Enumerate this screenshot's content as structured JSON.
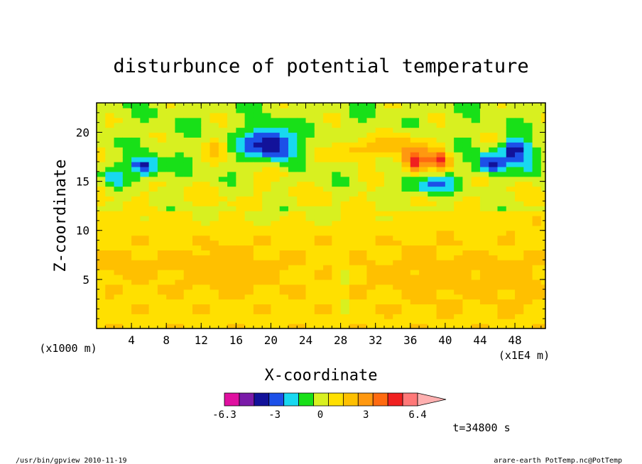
{
  "chart_data": {
    "type": "heatmap",
    "title": "disturbunce of potential temperature",
    "xlabel": "X-coordinate",
    "ylabel": "Z-coordinate",
    "x_unit_left": "(x1000 m)",
    "x_unit_right": "(x1E4 m)",
    "xlim": [
      0,
      51.5
    ],
    "ylim": [
      0,
      23
    ],
    "x_ticks": [
      "4",
      "8",
      "12",
      "16",
      "20",
      "24",
      "28",
      "32",
      "36",
      "40",
      "44",
      "48"
    ],
    "y_ticks": [
      "5",
      "10",
      "15",
      "20"
    ],
    "colorbar": {
      "colors": [
        "#e010a0",
        "#7a1aa8",
        "#12129a",
        "#1c50e8",
        "#18d8f0",
        "#18e018",
        "#d8f020",
        "#ffe000",
        "#ffc000",
        "#ff9810",
        "#ff6a10",
        "#f02020",
        "#ff7878"
      ],
      "extension_color": "#ffb0b0",
      "labels": [
        "-6.3",
        "-3",
        "0",
        "3",
        "6.4"
      ],
      "min": -6.3,
      "max": 6.4
    },
    "cell_dx": 1,
    "cell_dz": 0.5,
    "legend": "none",
    "grid": false
  },
  "annotations": {
    "time": "t=34800 s",
    "footer_left": "/usr/bin/gpview  2010-11-19",
    "footer_right": "arare-earth_PotTemp.nc@PotTemp"
  }
}
